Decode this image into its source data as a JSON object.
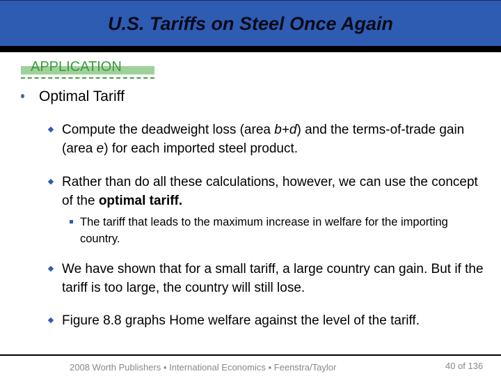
{
  "title": "U.S. Tariffs on Steel Once Again",
  "section_label": "APPLICATION",
  "heading": "Optimal Tariff",
  "bullets": [
    {
      "pre": "Compute the deadweight loss (area ",
      "i1": "b+d",
      "mid": ") and the terms-of-trade gain (area ",
      "i2": "e",
      "post": ") for each imported steel product."
    },
    {
      "pre": "Rather than do all these calculations, however, we can use the concept of the ",
      "bold": "optimal tariff."
    },
    {
      "sub": "The tariff that leads to the maximum increase in welfare for the importing country."
    },
    {
      "text": "We have shown that for a small tariff, a large country can gain. But if the tariff is too large, the country will still lose."
    },
    {
      "text": "Figure 8.8 graphs Home welfare against the level of the tariff."
    }
  ],
  "footer": "2008 Worth Publishers ▪ International Economics ▪ Feenstra/Taylor",
  "page": "40 of 136",
  "colors": {
    "header": "#2e5cb2",
    "accent": "#3a9a3a"
  }
}
